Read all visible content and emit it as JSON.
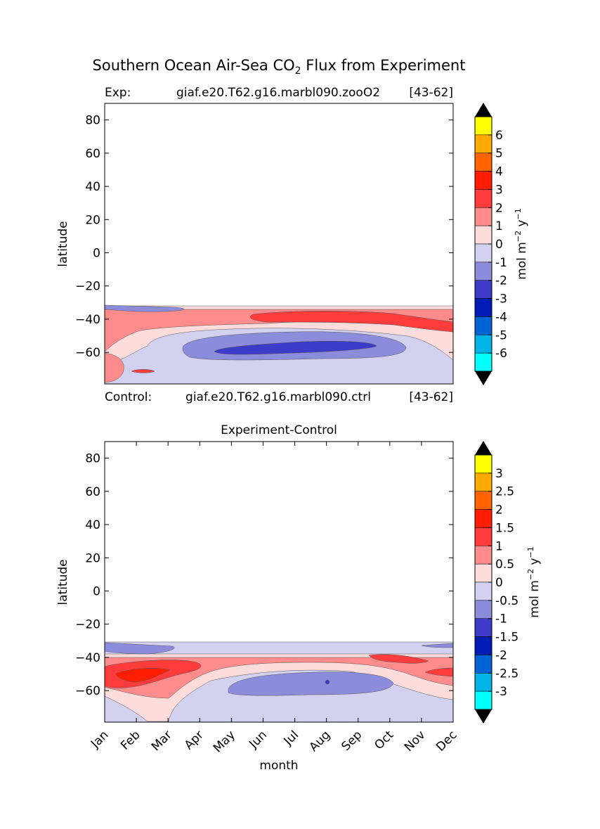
{
  "figure": {
    "title_main": "Southern Ocean Air-Sea CO",
    "title_sub": "2",
    "title_tail": " Flux from Experiment"
  },
  "colors": {
    "top_levels": [
      "#00ffff",
      "#00b4e6",
      "#0064d2",
      "#001eb4",
      "#3c3cc8",
      "#8c8cdc",
      "#d2d2f0",
      "#ffdcdc",
      "#ff8c8c",
      "#ff3c3c",
      "#ff1e00",
      "#ff6400",
      "#ffaa00",
      "#ffff00"
    ],
    "bottom_levels": [
      "#00ffff",
      "#00b4e6",
      "#0064d2",
      "#001eb4",
      "#3c3cc8",
      "#8c8cdc",
      "#d2d2f0",
      "#ffdcdc",
      "#ff8c8c",
      "#ff3c3c",
      "#ff1e00",
      "#ff6400",
      "#ffaa00",
      "#ffff00"
    ],
    "extend": "#000000"
  },
  "chart_data": [
    {
      "type": "heatmap",
      "title": "",
      "title_left": "Exp:",
      "title_center": "giaf.e20.T62.g16.marbl090.zooO2",
      "title_right": "[43-62]",
      "bottom_left": "Control:",
      "bottom_center": "giaf.e20.T62.g16.marbl090.ctrl",
      "bottom_right": "[43-62]",
      "xlabel": "",
      "ylabel": "latitude",
      "ylim": [
        -79,
        90
      ],
      "yticks": [
        80,
        60,
        40,
        20,
        0,
        -20,
        -40,
        -60
      ],
      "ytick_labels": [
        "80",
        "60",
        "40",
        "20",
        "0",
        "−20",
        "−40",
        "−60"
      ],
      "data_lat_max": -33,
      "colorbar": {
        "label": "mol m⁻² y⁻¹",
        "tick_labels": [
          "6",
          "5",
          "4",
          "3",
          "2",
          "1",
          "0",
          "-1",
          "-2",
          "-3",
          "-4",
          "-5",
          "-6"
        ],
        "extend": "both"
      },
      "field_description": "negative flux (-1 to -3) centered near -58 lat May-Oct; positive (1-3) band -38 to -48 lat; 0 to 1 elsewhere"
    },
    {
      "type": "heatmap",
      "title": "Experiment-Control",
      "xlabel": "month",
      "ylabel": "latitude",
      "x": [
        "Jan",
        "Feb",
        "Mar",
        "Apr",
        "May",
        "Jun",
        "Jul",
        "Aug",
        "Sep",
        "Oct",
        "Nov",
        "Dec"
      ],
      "ylim": [
        -79,
        90
      ],
      "yticks": [
        80,
        60,
        40,
        20,
        0,
        -20,
        -40,
        -60
      ],
      "ytick_labels": [
        "80",
        "60",
        "40",
        "20",
        "0",
        "−20",
        "−40",
        "−60"
      ],
      "data_lat_max": -33,
      "colorbar": {
        "label": "mol m⁻² y⁻¹",
        "tick_labels": [
          "3",
          "2.5",
          "2",
          "1.5",
          "1",
          "0.5",
          "0",
          "-0.5",
          "-1",
          "-1.5",
          "-2",
          "-2.5",
          "-3"
        ],
        "extend": "both"
      }
    }
  ]
}
